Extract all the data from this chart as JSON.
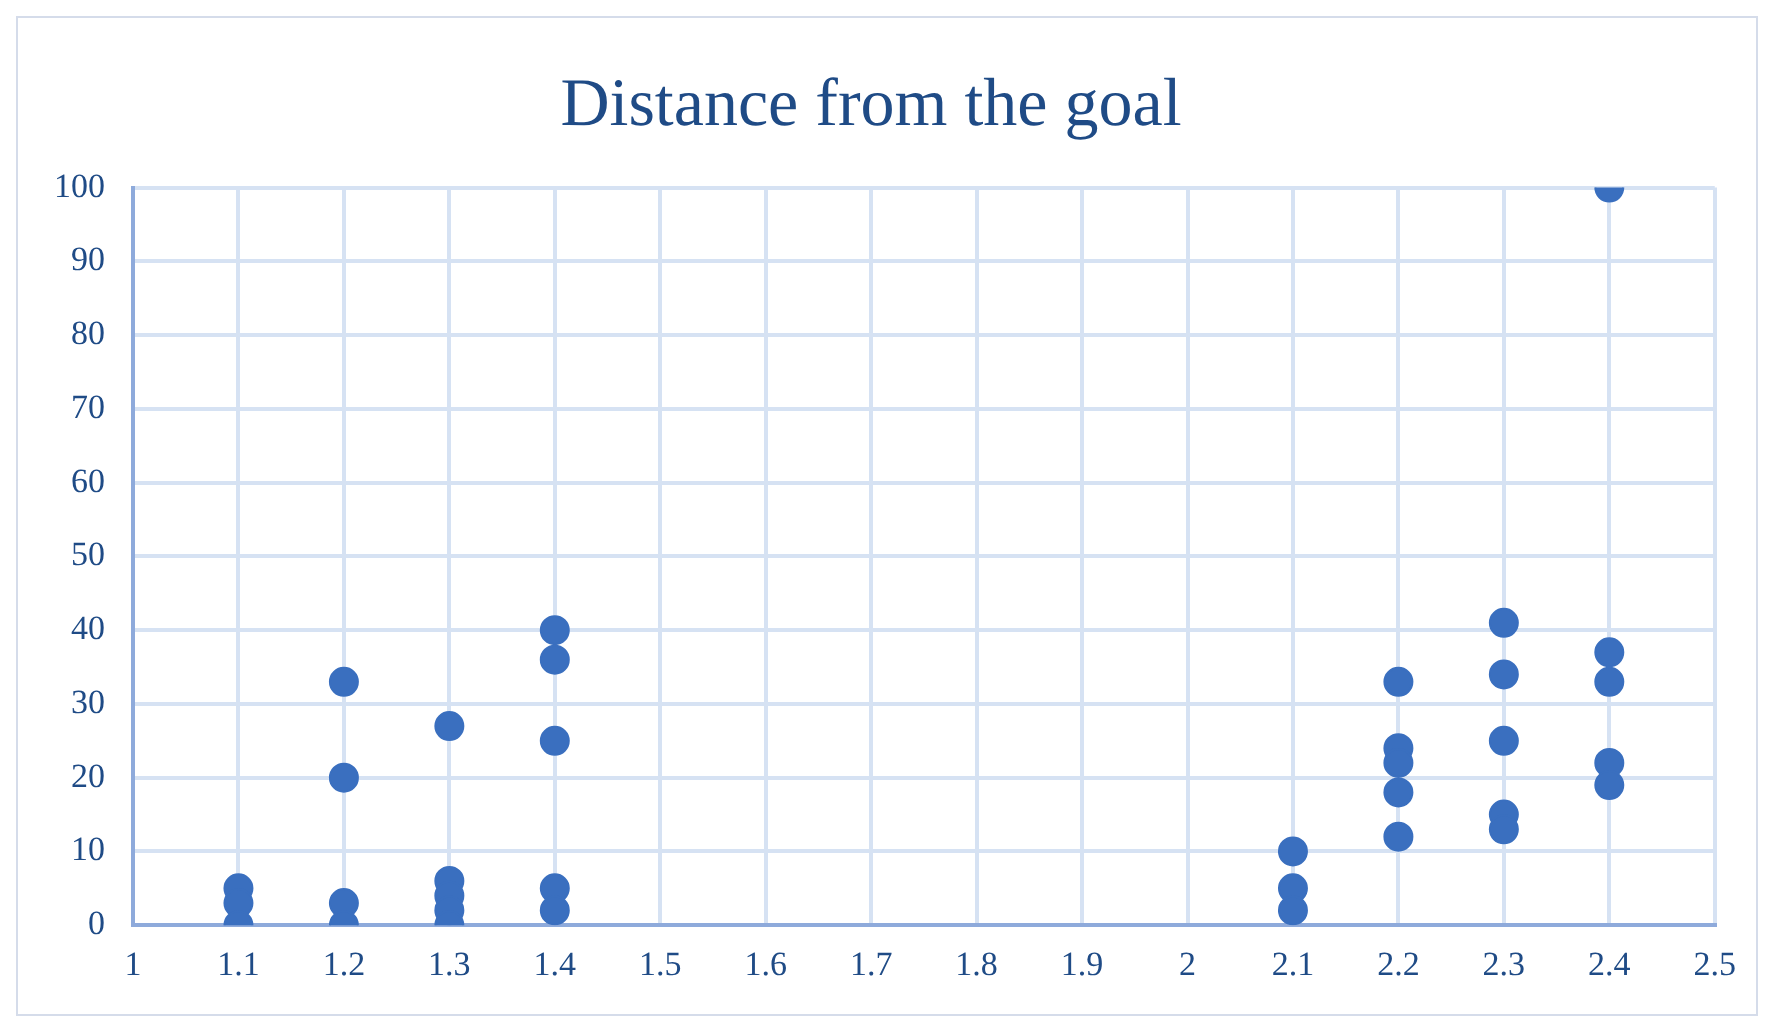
{
  "chart_data": {
    "type": "scatter",
    "title": "Distance from the goal",
    "x": [
      1.1,
      1.1,
      1.1,
      1.2,
      1.2,
      1.2,
      1.2,
      1.3,
      1.3,
      1.3,
      1.3,
      1.3,
      1.4,
      1.4,
      1.4,
      1.4,
      1.4,
      2.1,
      2.1,
      2.1,
      2.2,
      2.2,
      2.2,
      2.2,
      2.2,
      2.3,
      2.3,
      2.3,
      2.3,
      2.3,
      2.4,
      2.4,
      2.4,
      2.4,
      2.4
    ],
    "values": [
      5,
      3,
      0,
      33,
      20,
      3,
      0,
      27,
      6,
      4,
      2,
      0,
      40,
      36,
      25,
      5,
      2,
      10,
      5,
      2,
      33,
      24,
      22,
      18,
      12,
      41,
      34,
      25,
      15,
      13,
      100,
      37,
      33,
      22,
      19
    ],
    "color": "#3a6fbf",
    "marker": "circle",
    "xlim": [
      1,
      2.5
    ],
    "xticks": [
      1,
      1.1,
      1.2,
      1.3,
      1.4,
      1.5,
      1.6,
      1.7,
      1.8,
      1.9,
      2,
      2.1,
      2.2,
      2.3,
      2.4,
      2.5
    ],
    "ylim": [
      0,
      100
    ],
    "yticks": [
      0,
      10,
      20,
      30,
      40,
      50,
      60,
      70,
      80,
      90,
      100
    ],
    "grid": true
  }
}
